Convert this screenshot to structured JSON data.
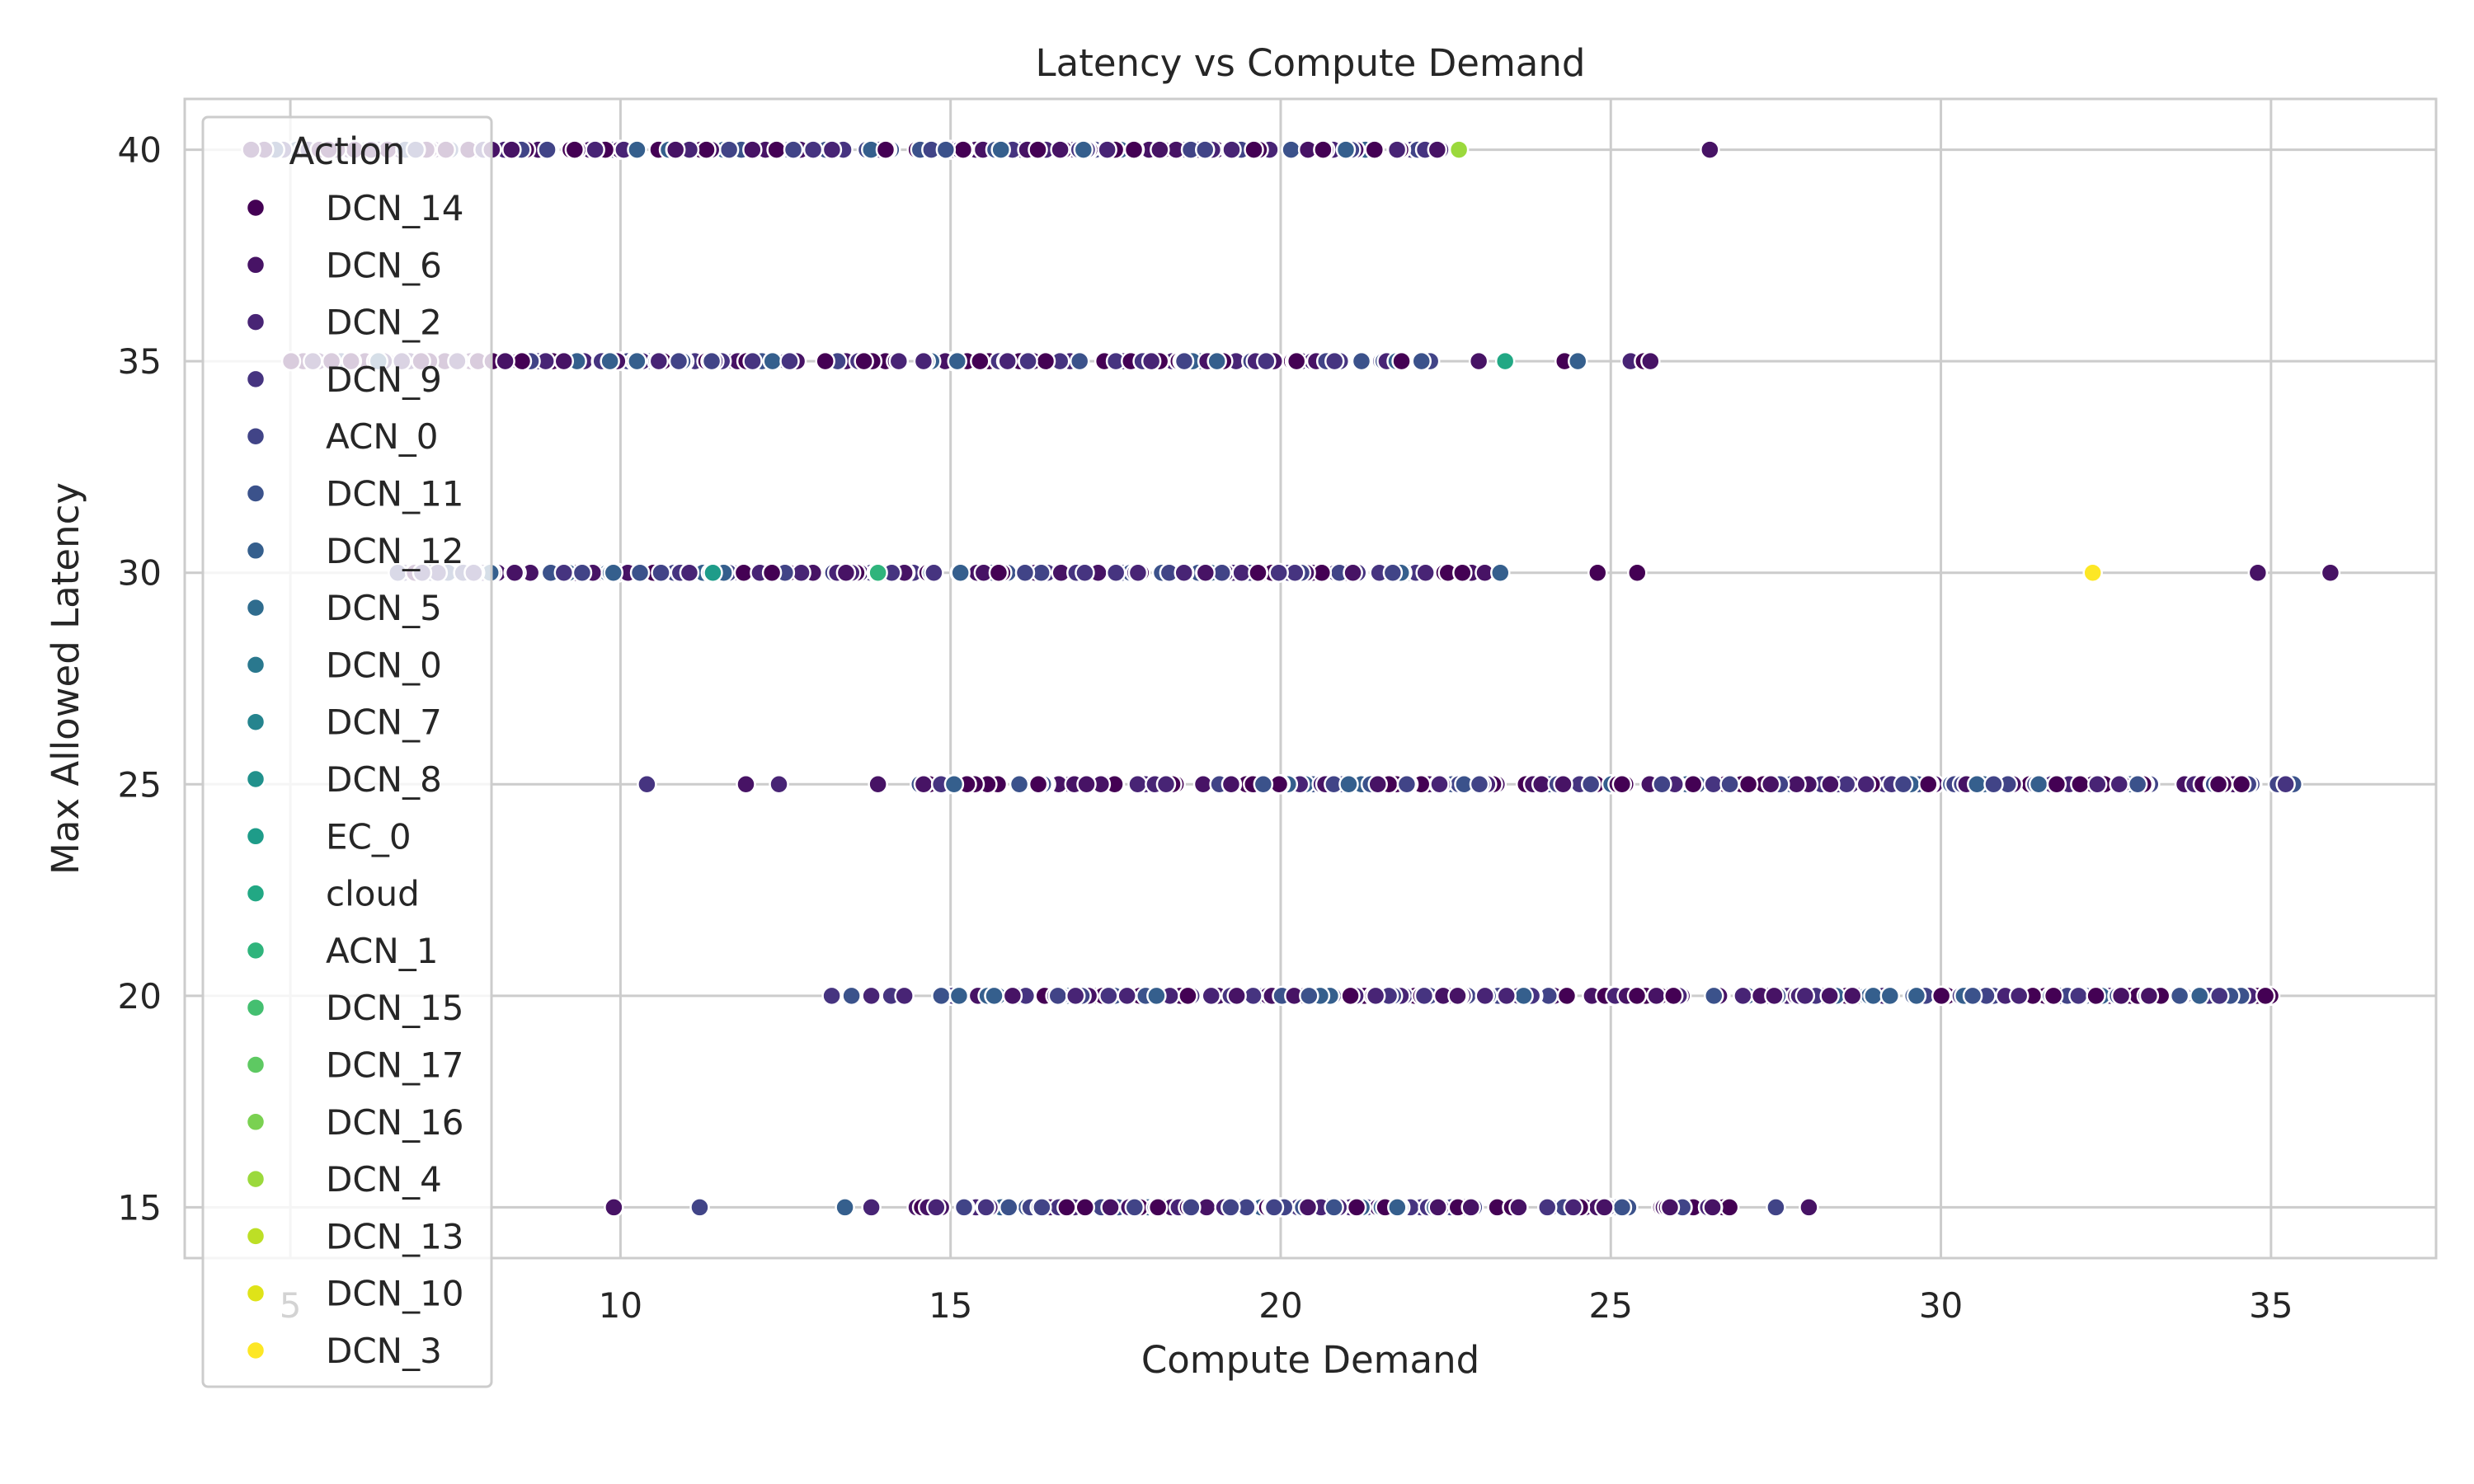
{
  "chart_data": {
    "type": "scatter",
    "title": "Latency vs Compute Demand",
    "xlabel": "Compute Demand",
    "ylabel": "Max Allowed Latency",
    "xlim": [
      3.4,
      37.5
    ],
    "ylim": [
      13.8,
      41.2
    ],
    "xticks": [
      5,
      10,
      15,
      20,
      25,
      30,
      35
    ],
    "yticks": [
      15,
      20,
      25,
      30,
      35,
      40
    ],
    "grid": true,
    "legend": {
      "title": "Action",
      "position": "top-left",
      "entries": [
        "DCN_14",
        "DCN_6",
        "DCN_2",
        "DCN_9",
        "ACN_0",
        "DCN_11",
        "DCN_12",
        "DCN_5",
        "DCN_0",
        "DCN_7",
        "DCN_8",
        "EC_0",
        "cloud",
        "ACN_1",
        "DCN_15",
        "DCN_17",
        "DCN_16",
        "DCN_4",
        "DCN_13",
        "DCN_10",
        "DCN_3"
      ]
    },
    "colors": [
      "#440154",
      "#471365",
      "#482475",
      "#463480",
      "#414487",
      "#3b528b",
      "#355f8d",
      "#2f6c8e",
      "#2a788e",
      "#25848e",
      "#21918c",
      "#1e9c89",
      "#22a884",
      "#2fb47c",
      "#44bf70",
      "#5ec962",
      "#7ad151",
      "#9bd93c",
      "#bddf26",
      "#dfe318",
      "#fde725"
    ],
    "bands": [
      {
        "y": 40,
        "x_range": [
          4.3,
          22.5
        ],
        "extra_x": [
          26.5
        ],
        "special": [
          {
            "x": 22.7,
            "label": "DCN_4"
          }
        ]
      },
      {
        "y": 35,
        "x_range": [
          5.0,
          22.3
        ],
        "extra_x": [
          23.0,
          24.3,
          24.5,
          25.3,
          25.5,
          25.6
        ],
        "special": [
          {
            "x": 23.4,
            "label": "cloud"
          }
        ]
      },
      {
        "y": 30,
        "x_range": [
          6.6,
          23.4
        ],
        "extra_x": [
          24.8,
          25.4,
          34.8,
          35.9
        ],
        "special": [
          {
            "x": 11.4,
            "label": "EC_0"
          },
          {
            "x": 13.9,
            "label": "ACN_1"
          },
          {
            "x": 32.3,
            "label": "DCN_3"
          }
        ]
      },
      {
        "y": 25,
        "x_range": [
          14.5,
          35.4
        ],
        "extra_x": [
          10.4,
          11.9,
          12.4,
          13.9
        ],
        "special": []
      },
      {
        "y": 20,
        "x_range": [
          14.8,
          35.0
        ],
        "extra_x": [
          13.2,
          13.5,
          13.8,
          14.1,
          14.3
        ],
        "special": []
      },
      {
        "y": 15,
        "x_range": [
          14.4,
          26.8
        ],
        "extra_x": [
          9.9,
          11.2,
          13.4,
          13.8,
          27.5,
          28.0
        ],
        "special": []
      }
    ]
  }
}
